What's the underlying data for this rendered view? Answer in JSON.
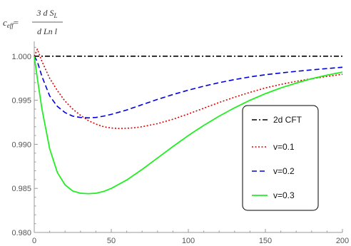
{
  "chart_data": {
    "type": "line",
    "title": "",
    "xlabel": "",
    "ylabel": {
      "lhs": "c",
      "lhs_sub": "eff",
      "equals": "=",
      "numerator": "3 d S",
      "numerator_sub": "L",
      "denominator": "d Ln l"
    },
    "xlim": [
      0,
      200
    ],
    "ylim": [
      0.98,
      1.0012
    ],
    "xticks": [
      0,
      50,
      100,
      150,
      200
    ],
    "xtick_labels": [
      "0",
      "50",
      "100",
      "150",
      "200"
    ],
    "yticks": [
      0.98,
      0.985,
      0.99,
      0.995,
      1.0
    ],
    "ytick_labels": [
      "0.980",
      "0.985",
      "0.990",
      "0.995",
      "1.000"
    ],
    "grid": false,
    "legend_position": "right",
    "series": [
      {
        "name": "2d CFT",
        "color": "#000000",
        "dash": "dashdot",
        "x": [
          0,
          200
        ],
        "y": [
          1.0,
          1.0
        ]
      },
      {
        "name": "v=0.1",
        "color": "#dd0000",
        "dash": "dotted",
        "x": [
          0,
          2,
          5,
          10,
          15,
          20,
          25,
          30,
          35,
          40,
          45,
          50,
          55,
          60,
          65,
          70,
          80,
          90,
          100,
          110,
          120,
          130,
          140,
          150,
          160,
          170,
          180,
          190,
          200
        ],
        "y": [
          1.0,
          1.0008,
          0.9994,
          0.9975,
          0.9961,
          0.9949,
          0.994,
          0.9933,
          0.9927,
          0.9923,
          0.992,
          0.99185,
          0.9918,
          0.99182,
          0.99188,
          0.992,
          0.99235,
          0.99285,
          0.99345,
          0.9941,
          0.99475,
          0.99535,
          0.9959,
          0.9964,
          0.9968,
          0.99715,
          0.99745,
          0.9977,
          0.99795
        ]
      },
      {
        "name": "v=0.2",
        "color": "#0000dd",
        "dash": "dashed",
        "x": [
          0,
          2,
          5,
          10,
          15,
          20,
          25,
          30,
          35,
          40,
          45,
          50,
          60,
          70,
          80,
          90,
          100,
          110,
          120,
          130,
          140,
          150,
          160,
          170,
          180,
          190,
          200
        ],
        "y": [
          1.0,
          0.9994,
          0.9977,
          0.9955,
          0.9943,
          0.9936,
          0.9932,
          0.99305,
          0.993,
          0.99305,
          0.9932,
          0.9934,
          0.9939,
          0.9945,
          0.9951,
          0.99565,
          0.99615,
          0.9966,
          0.997,
          0.99735,
          0.99765,
          0.9979,
          0.9981,
          0.99828,
          0.99845,
          0.9986,
          0.99875
        ]
      },
      {
        "name": "v=0.3",
        "color": "#22ee22",
        "dash": "solid",
        "x": [
          0,
          2,
          5,
          10,
          15,
          20,
          25,
          30,
          35,
          40,
          45,
          50,
          60,
          70,
          80,
          90,
          100,
          110,
          120,
          130,
          140,
          150,
          160,
          170,
          180,
          190,
          200
        ],
        "y": [
          1.0,
          0.9975,
          0.994,
          0.9895,
          0.9868,
          0.9854,
          0.9847,
          0.98445,
          0.9844,
          0.98445,
          0.98465,
          0.985,
          0.98595,
          0.98715,
          0.98845,
          0.98975,
          0.991,
          0.99215,
          0.9932,
          0.99415,
          0.995,
          0.99575,
          0.9964,
          0.99695,
          0.99745,
          0.99785,
          0.9982
        ]
      }
    ]
  }
}
